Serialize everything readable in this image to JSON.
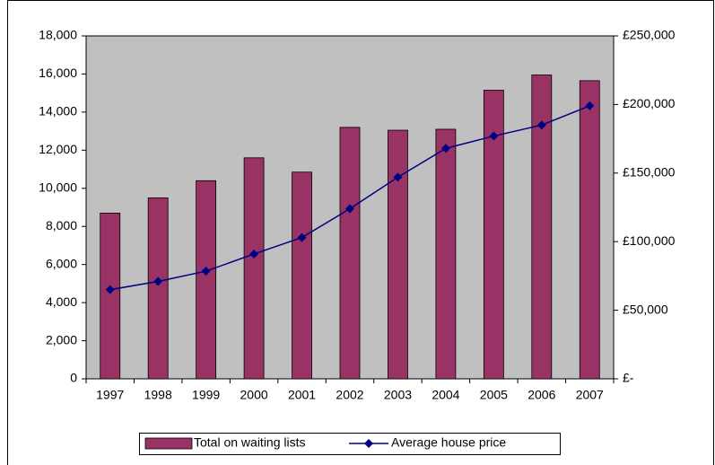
{
  "chart_data": {
    "type": "bar",
    "categories": [
      "1997",
      "1998",
      "1999",
      "2000",
      "2001",
      "2002",
      "2003",
      "2004",
      "2005",
      "2006",
      "2007"
    ],
    "series": [
      {
        "name": "Total on waiting lists",
        "type": "bar",
        "color": "#993366",
        "values": [
          8700,
          9500,
          10400,
          11600,
          10850,
          13200,
          13050,
          13100,
          15150,
          15950,
          15650
        ]
      },
      {
        "name": "Average house price",
        "type": "line",
        "axis": "y2",
        "color": "#000080",
        "values": [
          65000,
          71000,
          78500,
          91000,
          103000,
          124000,
          147000,
          168000,
          177000,
          185000,
          199000
        ]
      }
    ],
    "ylim": [
      0,
      18000
    ],
    "yticks": [
      0,
      {
        "value": 2000,
        "label": "2,000"
      },
      {
        "value": 4000,
        "label": "4,000"
      },
      {
        "value": 6000,
        "label": "6,000"
      },
      {
        "value": 8000,
        "label": "8,000"
      },
      {
        "value": 10000,
        "label": "10,000"
      },
      {
        "value": 12000,
        "label": "12,000"
      },
      {
        "value": 14000,
        "label": "14,000"
      },
      {
        "value": 16000,
        "label": "16,000"
      },
      {
        "value": 18000,
        "label": "18,000"
      }
    ],
    "y2lim": [
      0,
      250000
    ],
    "y2ticks": [
      {
        "value": 0,
        "label": "£-"
      },
      {
        "value": 50000,
        "label": "£50,000"
      },
      {
        "value": 100000,
        "label": "£100,000"
      },
      {
        "value": 150000,
        "label": "£150,000"
      },
      {
        "value": 200000,
        "label": "£200,000"
      },
      {
        "value": 250000,
        "label": "£250,000"
      }
    ],
    "legend": "bottom"
  }
}
